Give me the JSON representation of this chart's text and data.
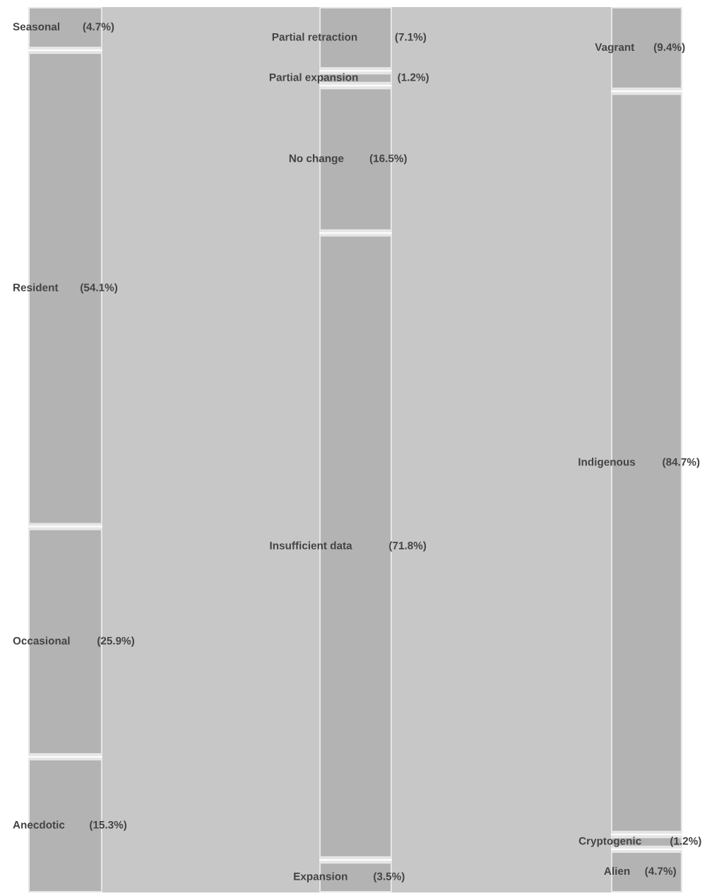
{
  "chart_data": [
    {
      "type": "other",
      "categories": [
        "Seasonal",
        "Resident",
        "Occasional",
        "Anecdotic"
      ],
      "values": [
        4.7,
        54.1,
        25.9,
        15.3
      ],
      "value_labels": [
        "(4.7%)",
        "(54.1%)",
        "(25.9%)",
        "(15.3%)"
      ],
      "color": "#b3b3b3"
    },
    {
      "type": "other",
      "categories": [
        "Partial retraction",
        "Partial expansion",
        "No change",
        "Insufficient data",
        "Expansion"
      ],
      "values": [
        7.1,
        1.2,
        16.5,
        71.8,
        3.5
      ],
      "value_labels": [
        "(7.1%)",
        "(1.2%)",
        "(16.5%)",
        "(71.8%)",
        "(3.5%)"
      ],
      "color": "#b3b3b3"
    },
    {
      "type": "other",
      "categories": [
        "Vagrant",
        "Indigenous",
        "Cryptogenic",
        "Alien"
      ],
      "values": [
        9.4,
        84.7,
        1.2,
        4.7
      ],
      "value_labels": [
        "(9.4%)",
        "(84.7%)",
        "(1.2%)",
        "(4.7%)"
      ],
      "color": "#b3b3b3"
    }
  ]
}
